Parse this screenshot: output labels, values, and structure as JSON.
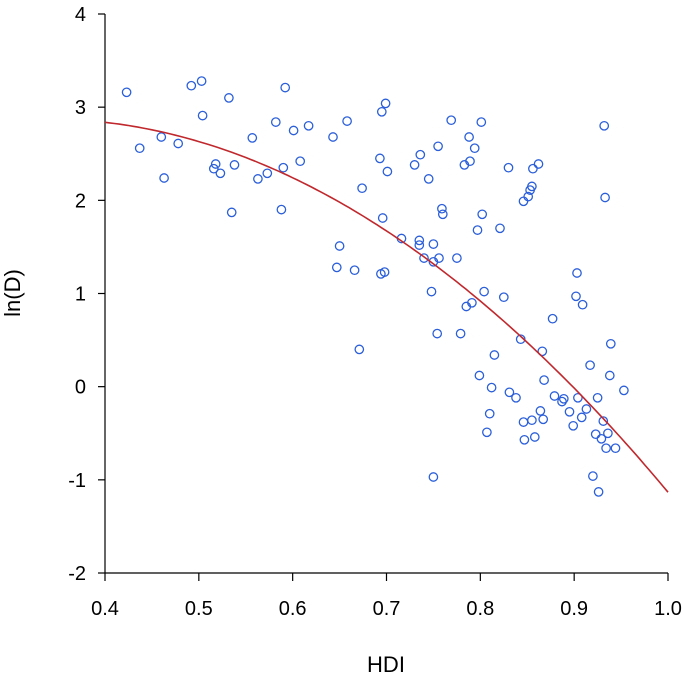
{
  "chart_data": {
    "type": "scatter",
    "xlabel": "HDI",
    "ylabel": "ln(D)",
    "xlim": [
      0.4,
      1.0
    ],
    "ylim": [
      -2,
      4
    ],
    "xticks": [
      "0.4",
      "0.5",
      "0.6",
      "0.7",
      "0.8",
      "0.9",
      "1.0"
    ],
    "yticks": [
      "-2",
      "-1",
      "0",
      "1",
      "2",
      "3",
      "4"
    ],
    "grid": false,
    "marker_color": "#2b5fd9",
    "curve_color": "#c0282d",
    "series": [
      {
        "type": "scatter",
        "points": [
          [
            0.423,
            3.16
          ],
          [
            0.437,
            2.56
          ],
          [
            0.46,
            2.68
          ],
          [
            0.463,
            2.24
          ],
          [
            0.478,
            2.61
          ],
          [
            0.492,
            3.23
          ],
          [
            0.503,
            3.28
          ],
          [
            0.504,
            2.91
          ],
          [
            0.516,
            2.34
          ],
          [
            0.518,
            2.39
          ],
          [
            0.523,
            2.29
          ],
          [
            0.532,
            3.1
          ],
          [
            0.535,
            1.87
          ],
          [
            0.538,
            2.38
          ],
          [
            0.557,
            2.67
          ],
          [
            0.563,
            2.23
          ],
          [
            0.573,
            2.29
          ],
          [
            0.582,
            2.84
          ],
          [
            0.588,
            1.9
          ],
          [
            0.59,
            2.35
          ],
          [
            0.592,
            3.21
          ],
          [
            0.601,
            2.75
          ],
          [
            0.608,
            2.42
          ],
          [
            0.617,
            2.8
          ],
          [
            0.643,
            2.68
          ],
          [
            0.647,
            1.28
          ],
          [
            0.65,
            1.51
          ],
          [
            0.658,
            2.85
          ],
          [
            0.666,
            1.25
          ],
          [
            0.671,
            0.4
          ],
          [
            0.674,
            2.13
          ],
          [
            0.693,
            2.45
          ],
          [
            0.694,
            1.21
          ],
          [
            0.695,
            2.95
          ],
          [
            0.696,
            1.81
          ],
          [
            0.698,
            1.23
          ],
          [
            0.699,
            3.04
          ],
          [
            0.701,
            2.31
          ],
          [
            0.716,
            1.59
          ],
          [
            0.73,
            2.38
          ],
          [
            0.735,
            1.57
          ],
          [
            0.735,
            1.52
          ],
          [
            0.736,
            2.49
          ],
          [
            0.74,
            1.38
          ],
          [
            0.745,
            2.23
          ],
          [
            0.748,
            1.02
          ],
          [
            0.75,
            1.34
          ],
          [
            0.75,
            1.53
          ],
          [
            0.75,
            -0.97
          ],
          [
            0.754,
            0.57
          ],
          [
            0.755,
            2.58
          ],
          [
            0.756,
            1.38
          ],
          [
            0.759,
            1.91
          ],
          [
            0.76,
            1.85
          ],
          [
            0.769,
            2.86
          ],
          [
            0.775,
            1.38
          ],
          [
            0.779,
            0.57
          ],
          [
            0.783,
            2.38
          ],
          [
            0.785,
            0.86
          ],
          [
            0.788,
            2.68
          ],
          [
            0.789,
            2.42
          ],
          [
            0.791,
            0.9
          ],
          [
            0.794,
            2.56
          ],
          [
            0.797,
            1.68
          ],
          [
            0.799,
            0.12
          ],
          [
            0.801,
            2.84
          ],
          [
            0.802,
            1.85
          ],
          [
            0.804,
            1.02
          ],
          [
            0.807,
            -0.49
          ],
          [
            0.81,
            -0.29
          ],
          [
            0.812,
            -0.01
          ],
          [
            0.815,
            0.34
          ],
          [
            0.821,
            1.7
          ],
          [
            0.825,
            0.96
          ],
          [
            0.83,
            2.35
          ],
          [
            0.831,
            -0.06
          ],
          [
            0.838,
            -0.12
          ],
          [
            0.843,
            0.51
          ],
          [
            0.846,
            1.99
          ],
          [
            0.846,
            -0.38
          ],
          [
            0.847,
            -0.57
          ],
          [
            0.851,
            2.04
          ],
          [
            0.853,
            2.11
          ],
          [
            0.855,
            2.15
          ],
          [
            0.855,
            -0.36
          ],
          [
            0.856,
            2.34
          ],
          [
            0.858,
            -0.54
          ],
          [
            0.862,
            2.39
          ],
          [
            0.864,
            -0.26
          ],
          [
            0.866,
            0.38
          ],
          [
            0.867,
            -0.35
          ],
          [
            0.868,
            0.07
          ],
          [
            0.877,
            0.73
          ],
          [
            0.879,
            -0.1
          ],
          [
            0.887,
            -0.16
          ],
          [
            0.889,
            -0.13
          ],
          [
            0.895,
            -0.27
          ],
          [
            0.899,
            -0.42
          ],
          [
            0.902,
            0.97
          ],
          [
            0.903,
            1.22
          ],
          [
            0.904,
            -0.12
          ],
          [
            0.908,
            -0.33
          ],
          [
            0.909,
            0.88
          ],
          [
            0.913,
            -0.24
          ],
          [
            0.917,
            0.23
          ],
          [
            0.92,
            -0.96
          ],
          [
            0.923,
            -0.51
          ],
          [
            0.925,
            -0.12
          ],
          [
            0.926,
            -1.13
          ],
          [
            0.929,
            -0.56
          ],
          [
            0.931,
            -0.37
          ],
          [
            0.932,
            2.8
          ],
          [
            0.933,
            2.03
          ],
          [
            0.934,
            -0.66
          ],
          [
            0.936,
            -0.5
          ],
          [
            0.938,
            0.12
          ],
          [
            0.939,
            0.46
          ],
          [
            0.944,
            -0.66
          ],
          [
            0.953,
            -0.04
          ]
        ]
      },
      {
        "type": "line",
        "x": [
          0.4,
          0.45,
          0.5,
          0.55,
          0.6,
          0.65,
          0.7,
          0.75,
          0.8,
          0.85,
          0.9,
          0.95,
          1.0
        ],
        "y": [
          2.76,
          2.74,
          2.65,
          2.51,
          2.3,
          2.04,
          1.72,
          1.34,
          0.9,
          0.4,
          -0.16,
          -0.78,
          -0.83
        ]
      }
    ]
  }
}
